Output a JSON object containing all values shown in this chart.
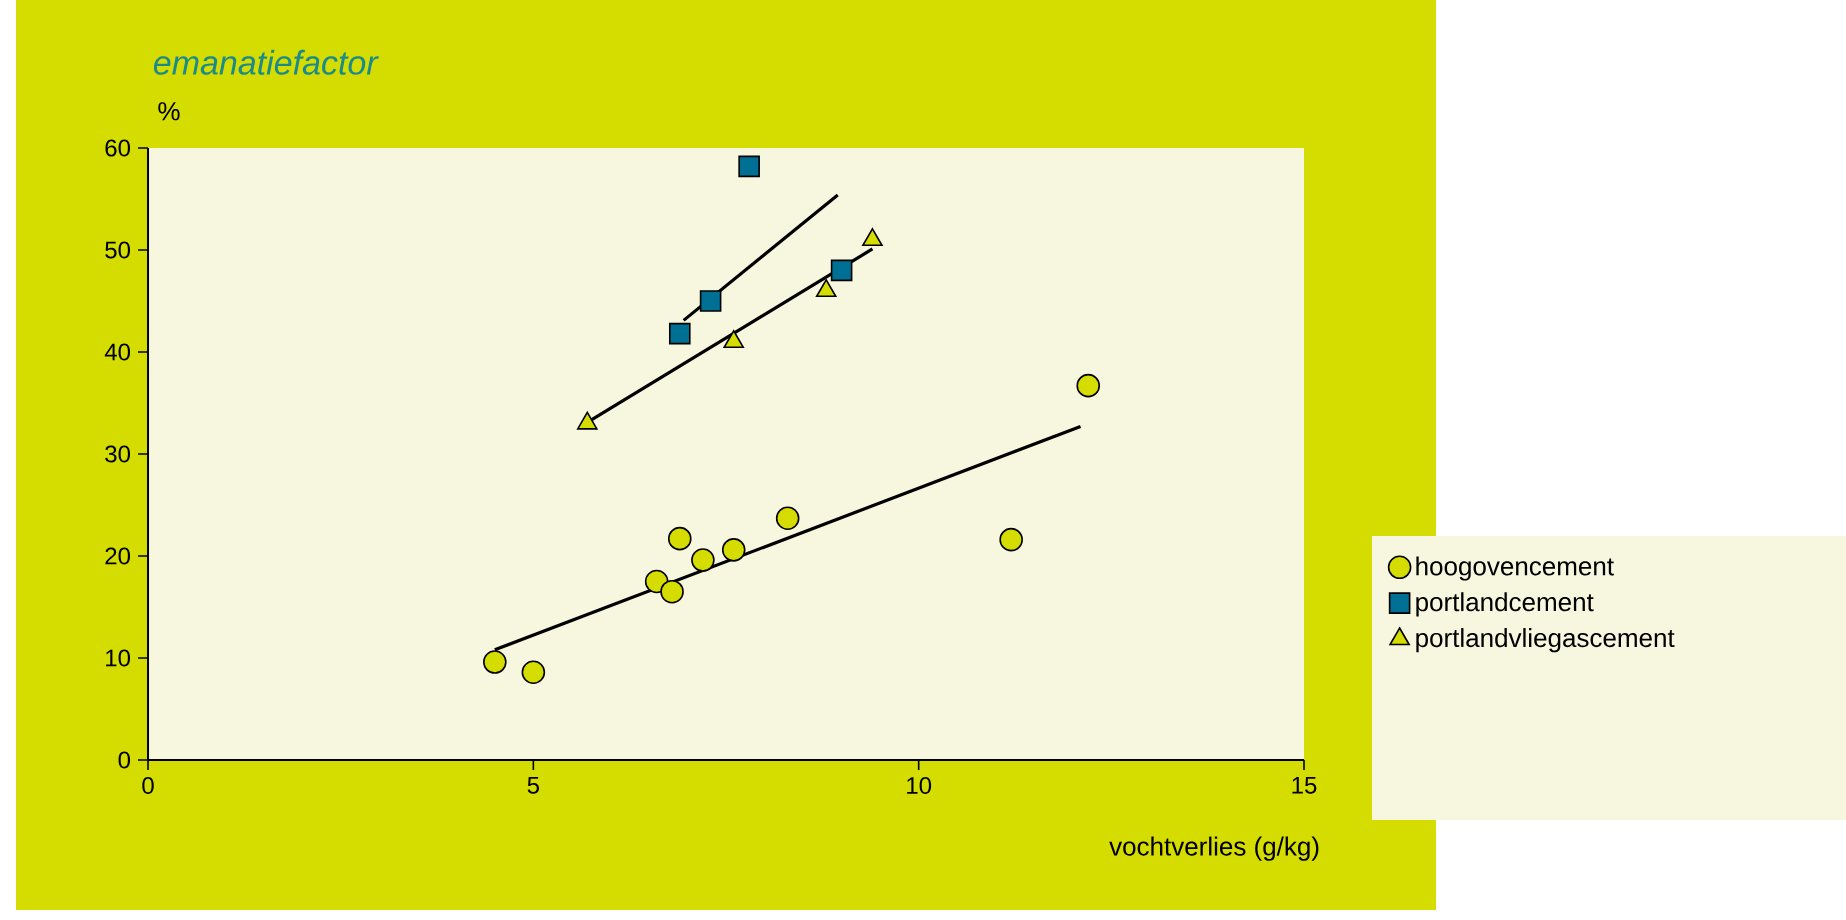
{
  "chart_data": {
    "type": "scatter",
    "title": "emanatiefactor",
    "ylabel": "%",
    "xlabel": "vochtverlies (g/kg)",
    "xlim": [
      0,
      15
    ],
    "xticks": [
      0,
      5,
      10,
      15
    ],
    "ylim": [
      0,
      60
    ],
    "yticks": [
      0,
      10,
      20,
      30,
      40,
      50,
      60
    ],
    "legend": "right",
    "series": [
      {
        "name": "hoogovencement",
        "color": "#d4dc00",
        "marker": "circle",
        "x": [
          4.5,
          5.0,
          6.6,
          6.8,
          6.9,
          7.2,
          7.6,
          8.3,
          11.2,
          12.2
        ],
        "values": [
          9.6,
          8.6,
          17.5,
          16.5,
          21.7,
          19.6,
          20.6,
          23.7,
          21.6,
          36.7
        ]
      },
      {
        "name": "portlandcement",
        "color": "#006f94",
        "marker": "square",
        "x": [
          6.9,
          7.3,
          7.8,
          9.0
        ],
        "values": [
          41.8,
          45.0,
          58.2,
          48.0
        ]
      },
      {
        "name": "portlandvliegascement",
        "color": "#d4dc00",
        "marker": "triangle",
        "x": [
          5.7,
          7.6,
          8.8,
          9.4
        ],
        "values": [
          33.0,
          41.0,
          46.0,
          51.0
        ]
      },
      {
        "type": "line",
        "color": "#000000",
        "marker": "none",
        "x": [
          4.5,
          12.1
        ],
        "values": [
          10.8,
          32.7
        ]
      },
      {
        "type": "line",
        "color": "#000000",
        "marker": "none",
        "x": [
          6.95,
          8.95
        ],
        "values": [
          43.1,
          55.4
        ]
      },
      {
        "type": "line",
        "color": "#000000",
        "marker": "none",
        "x": [
          5.7,
          9.4
        ],
        "values": [
          33.1,
          50.1
        ]
      }
    ]
  }
}
